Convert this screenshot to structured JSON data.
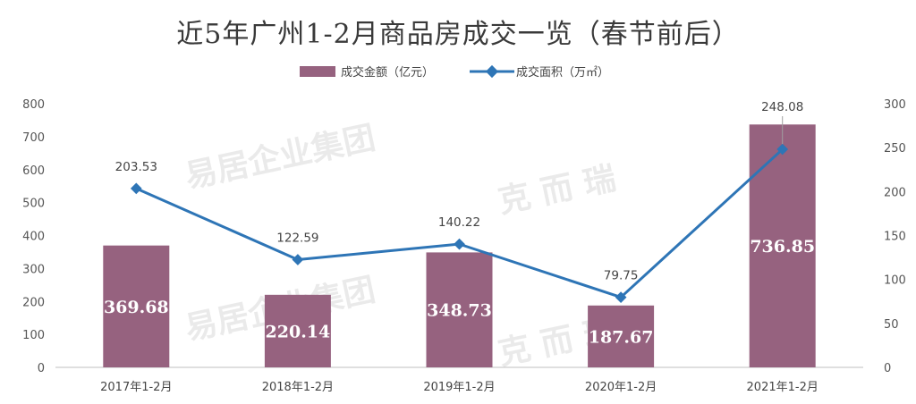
{
  "chart_data": {
    "type": "bar",
    "title": "近5年广州1-2月商品房成交一览（春节前后）",
    "categories": [
      "2017年1-2月",
      "2018年1-2月",
      "2019年1-2月",
      "2020年1-2月",
      "2021年1-2月"
    ],
    "series": [
      {
        "name": "成交金额（亿元）",
        "type": "bar",
        "axis": "left",
        "color": "#96627f",
        "values": [
          369.68,
          220.14,
          348.73,
          187.67,
          736.85
        ],
        "labels": [
          "369.68",
          "220.14",
          "348.73",
          "187.67",
          "736.85"
        ]
      },
      {
        "name": "成交面积（万㎡）",
        "type": "line",
        "axis": "right",
        "color": "#2e75b6",
        "values": [
          203.53,
          122.59,
          140.22,
          79.75,
          248.08
        ],
        "labels": [
          "203.53",
          "122.59",
          "140.22",
          "79.75",
          "248.08"
        ]
      }
    ],
    "y_left": {
      "min": 0,
      "max": 800,
      "ticks": [
        "0",
        "100",
        "200",
        "300",
        "400",
        "500",
        "600",
        "700",
        "800"
      ]
    },
    "y_right": {
      "min": 0,
      "max": 300,
      "ticks": [
        "0",
        "50",
        "100",
        "150",
        "200",
        "250",
        "300"
      ]
    },
    "grid": false,
    "legend_position": "top-center"
  },
  "watermark": {
    "text_1": "易居企业集团",
    "text_2": "克 而 瑞",
    "color": "#d0d0d0"
  }
}
